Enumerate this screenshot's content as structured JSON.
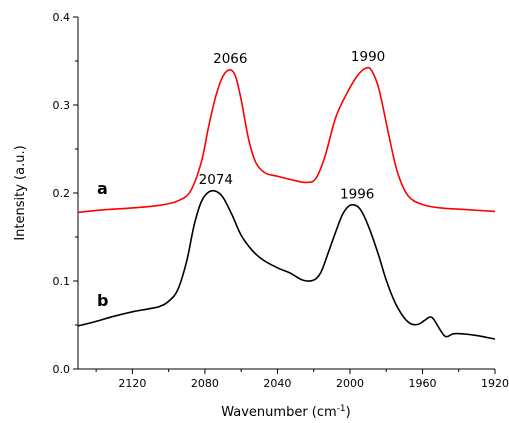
{
  "chart_data": {
    "type": "line",
    "xlabel": "Wavenumber (cm",
    "xlabel_sup": "-1",
    "xlabel_end": ")",
    "ylabel": "Intensity (a.u.)",
    "xlim": [
      2150,
      1920
    ],
    "ylim": [
      0,
      0.4
    ],
    "x_reversed": true,
    "x_ticks": [
      2120,
      2080,
      2040,
      2000,
      1960,
      1920
    ],
    "y_ticks": [
      0.0,
      0.1,
      0.2,
      0.3,
      0.4
    ],
    "x_tick_labels": [
      "2120",
      "2080",
      "2040",
      "2000",
      "1960",
      "1920"
    ],
    "y_tick_labels": [
      "0.0",
      "0.1",
      "0.2",
      "0.3",
      "0.4"
    ],
    "grid": false,
    "series": [
      {
        "name": "a",
        "color": "#ff0000",
        "points": [
          [
            2150,
            0.178
          ],
          [
            2135,
            0.181
          ],
          [
            2120,
            0.183
          ],
          [
            2105,
            0.186
          ],
          [
            2095,
            0.191
          ],
          [
            2088,
            0.202
          ],
          [
            2082,
            0.235
          ],
          [
            2078,
            0.275
          ],
          [
            2074,
            0.31
          ],
          [
            2070,
            0.333
          ],
          [
            2066,
            0.34
          ],
          [
            2063,
            0.332
          ],
          [
            2060,
            0.306
          ],
          [
            2056,
            0.262
          ],
          [
            2052,
            0.235
          ],
          [
            2047,
            0.223
          ],
          [
            2040,
            0.219
          ],
          [
            2030,
            0.214
          ],
          [
            2024,
            0.212
          ],
          [
            2019,
            0.216
          ],
          [
            2014,
            0.24
          ],
          [
            2008,
            0.285
          ],
          [
            2002,
            0.312
          ],
          [
            1996,
            0.333
          ],
          [
            1991,
            0.342
          ],
          [
            1988,
            0.339
          ],
          [
            1984,
            0.318
          ],
          [
            1979,
            0.27
          ],
          [
            1974,
            0.225
          ],
          [
            1968,
            0.197
          ],
          [
            1960,
            0.187
          ],
          [
            1950,
            0.183
          ],
          [
            1935,
            0.181
          ],
          [
            1920,
            0.179
          ]
        ]
      },
      {
        "name": "b",
        "color": "#000000",
        "points": [
          [
            2150,
            0.049
          ],
          [
            2142,
            0.053
          ],
          [
            2130,
            0.06
          ],
          [
            2120,
            0.065
          ],
          [
            2112,
            0.068
          ],
          [
            2105,
            0.071
          ],
          [
            2100,
            0.077
          ],
          [
            2095,
            0.09
          ],
          [
            2090,
            0.123
          ],
          [
            2086,
            0.163
          ],
          [
            2082,
            0.19
          ],
          [
            2078,
            0.201
          ],
          [
            2074,
            0.202
          ],
          [
            2070,
            0.195
          ],
          [
            2065,
            0.175
          ],
          [
            2060,
            0.152
          ],
          [
            2054,
            0.135
          ],
          [
            2048,
            0.124
          ],
          [
            2040,
            0.115
          ],
          [
            2033,
            0.109
          ],
          [
            2026,
            0.101
          ],
          [
            2020,
            0.101
          ],
          [
            2016,
            0.11
          ],
          [
            2012,
            0.132
          ],
          [
            2008,
            0.155
          ],
          [
            2004,
            0.176
          ],
          [
            2000,
            0.186
          ],
          [
            1996,
            0.185
          ],
          [
            1993,
            0.177
          ],
          [
            1989,
            0.158
          ],
          [
            1984,
            0.128
          ],
          [
            1980,
            0.101
          ],
          [
            1975,
            0.075
          ],
          [
            1970,
            0.058
          ],
          [
            1966,
            0.051
          ],
          [
            1962,
            0.051
          ],
          [
            1959,
            0.055
          ],
          [
            1956,
            0.059
          ],
          [
            1954,
            0.057
          ],
          [
            1951,
            0.047
          ],
          [
            1948,
            0.038
          ],
          [
            1946,
            0.037
          ],
          [
            1943,
            0.04
          ],
          [
            1938,
            0.04
          ],
          [
            1930,
            0.038
          ],
          [
            1920,
            0.034
          ]
        ]
      }
    ],
    "annotations": [
      {
        "text": "2066",
        "x": 2066,
        "y": 0.34
      },
      {
        "text": "1990",
        "x": 1990,
        "y": 0.342
      },
      {
        "text": "2074",
        "x": 2074,
        "y": 0.202
      },
      {
        "text": "1996",
        "x": 1996,
        "y": 0.186
      }
    ]
  }
}
